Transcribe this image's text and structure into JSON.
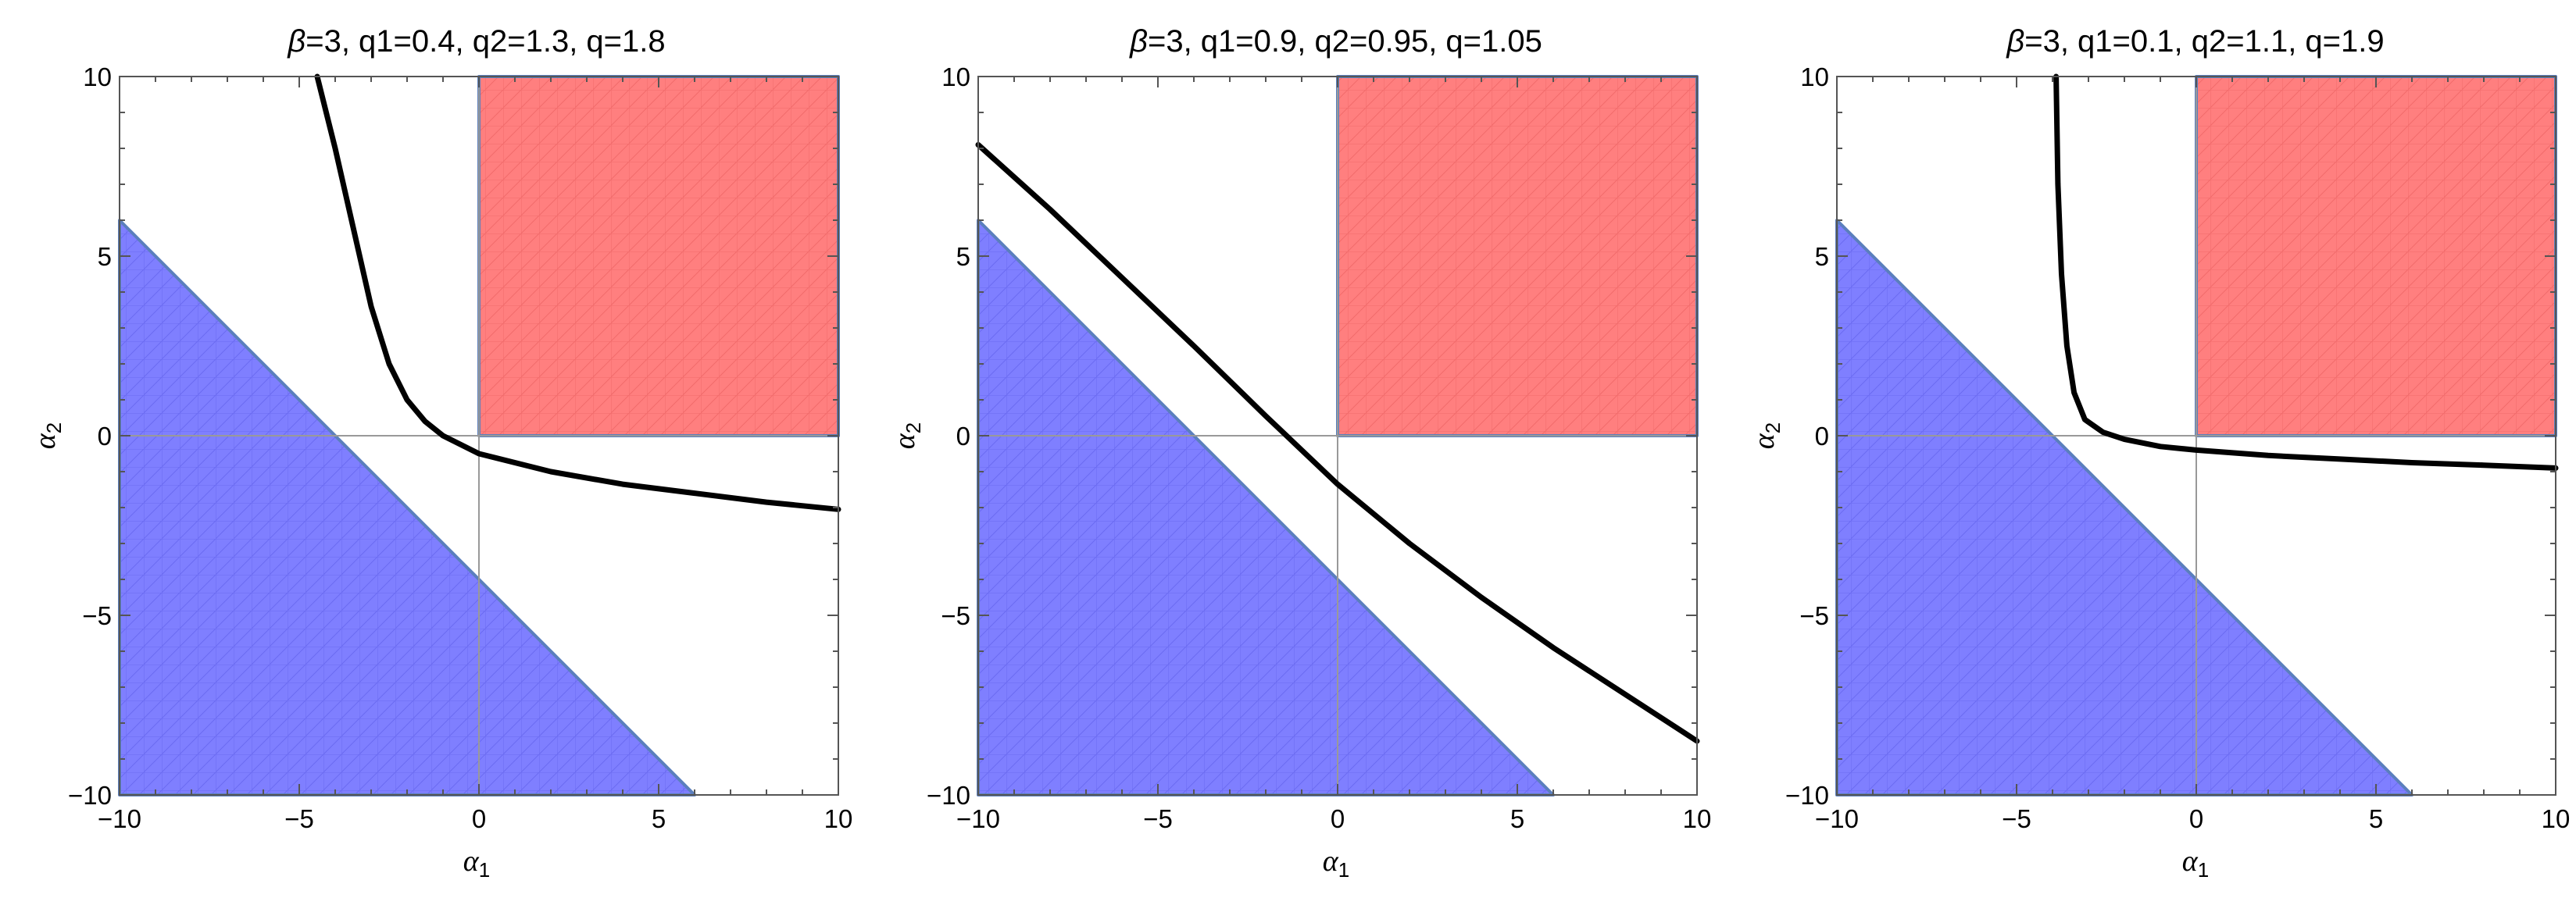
{
  "chart_data": [
    {
      "type": "region-plot",
      "title_sym": "β",
      "title_rest": "=3, q1=0.4, q2=1.3, q=1.8",
      "xlabel": "α",
      "xlabel_sub": "1",
      "ylabel": "α",
      "ylabel_sub": "2",
      "xlim": [
        -10,
        10
      ],
      "ylim": [
        -10,
        10
      ],
      "xticks": [
        -10,
        -5,
        0,
        5,
        10
      ],
      "yticks": [
        -10,
        -5,
        0,
        5,
        10
      ],
      "xtick_labels": [
        "−10",
        "−5",
        "0",
        "5",
        "10"
      ],
      "ytick_labels": [
        "−10",
        "−5",
        "0",
        "5",
        "10"
      ],
      "regions": [
        {
          "name": "blue-region",
          "color": "#7f7fff",
          "vertices": [
            [
              -10,
              6
            ],
            [
              -10,
              -10
            ],
            [
              6,
              -10
            ]
          ]
        },
        {
          "name": "red-region",
          "color": "#ff7f7f",
          "vertices": [
            [
              0,
              0
            ],
            [
              10,
              0
            ],
            [
              10,
              10
            ],
            [
              0,
              10
            ]
          ]
        }
      ],
      "curve": {
        "color": "#000000",
        "points": [
          [
            -4.5,
            10
          ],
          [
            -4,
            8
          ],
          [
            -3.5,
            5.8
          ],
          [
            -3,
            3.6
          ],
          [
            -2.5,
            2.0
          ],
          [
            -2,
            1.0
          ],
          [
            -1.5,
            0.4
          ],
          [
            -1,
            0.0
          ],
          [
            0,
            -0.5
          ],
          [
            2,
            -1.0
          ],
          [
            4,
            -1.35
          ],
          [
            6,
            -1.6
          ],
          [
            8,
            -1.85
          ],
          [
            10,
            -2.05
          ]
        ]
      }
    },
    {
      "type": "region-plot",
      "title_sym": "β",
      "title_rest": "=3, q1=0.9, q2=0.95, q=1.05",
      "xlabel": "α",
      "xlabel_sub": "1",
      "ylabel": "α",
      "ylabel_sub": "2",
      "xlim": [
        -10,
        10
      ],
      "ylim": [
        -10,
        10
      ],
      "xticks": [
        -10,
        -5,
        0,
        5,
        10
      ],
      "yticks": [
        -10,
        -5,
        0,
        5,
        10
      ],
      "xtick_labels": [
        "−10",
        "−5",
        "0",
        "5",
        "10"
      ],
      "ytick_labels": [
        "−10",
        "−5",
        "0",
        "5",
        "10"
      ],
      "regions": [
        {
          "name": "blue-region",
          "color": "#7f7fff",
          "vertices": [
            [
              -10,
              6
            ],
            [
              -10,
              -10
            ],
            [
              6,
              -10
            ]
          ]
        },
        {
          "name": "red-region",
          "color": "#ff7f7f",
          "vertices": [
            [
              0,
              0
            ],
            [
              10,
              0
            ],
            [
              10,
              10
            ],
            [
              0,
              10
            ]
          ]
        }
      ],
      "curve": {
        "color": "#000000",
        "points": [
          [
            -10,
            8.1
          ],
          [
            -8,
            6.3
          ],
          [
            -6,
            4.4
          ],
          [
            -4,
            2.5
          ],
          [
            -2,
            0.55
          ],
          [
            0,
            -1.35
          ],
          [
            2,
            -3.0
          ],
          [
            4,
            -4.5
          ],
          [
            6,
            -5.9
          ],
          [
            8,
            -7.2
          ],
          [
            10,
            -8.5
          ]
        ]
      }
    },
    {
      "type": "region-plot",
      "title_sym": "β",
      "title_rest": "=3, q1=0.1, q2=1.1, q=1.9",
      "xlabel": "α",
      "xlabel_sub": "1",
      "ylabel": "α",
      "ylabel_sub": "2",
      "xlim": [
        -10,
        10
      ],
      "ylim": [
        -10,
        10
      ],
      "xticks": [
        -10,
        -5,
        0,
        5,
        10
      ],
      "yticks": [
        -10,
        -5,
        0,
        5,
        10
      ],
      "xtick_labels": [
        "−10",
        "−5",
        "0",
        "5",
        "10"
      ],
      "ytick_labels": [
        "−10",
        "−5",
        "0",
        "5",
        "10"
      ],
      "regions": [
        {
          "name": "blue-region",
          "color": "#7f7fff",
          "vertices": [
            [
              -10,
              6
            ],
            [
              -10,
              -10
            ],
            [
              6,
              -10
            ]
          ]
        },
        {
          "name": "red-region",
          "color": "#ff7f7f",
          "vertices": [
            [
              0,
              0
            ],
            [
              10,
              0
            ],
            [
              10,
              10
            ],
            [
              0,
              10
            ]
          ]
        }
      ],
      "curve": {
        "color": "#000000",
        "points": [
          [
            -3.9,
            10
          ],
          [
            -3.85,
            7
          ],
          [
            -3.75,
            4.5
          ],
          [
            -3.6,
            2.5
          ],
          [
            -3.4,
            1.2
          ],
          [
            -3.1,
            0.45
          ],
          [
            -2.6,
            0.1
          ],
          [
            -2,
            -0.1
          ],
          [
            -1,
            -0.3
          ],
          [
            0,
            -0.4
          ],
          [
            2,
            -0.55
          ],
          [
            4,
            -0.65
          ],
          [
            6,
            -0.75
          ],
          [
            8,
            -0.82
          ],
          [
            10,
            -0.9
          ]
        ]
      }
    }
  ]
}
